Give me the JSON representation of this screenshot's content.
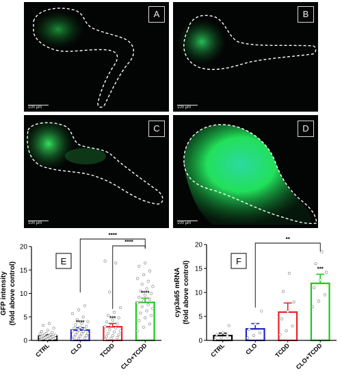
{
  "images": [
    {
      "letter": "A",
      "scale_label": "100 µm"
    },
    {
      "letter": "B",
      "scale_label": "100 µm"
    },
    {
      "letter": "C",
      "scale_label": "100 µm"
    },
    {
      "letter": "D",
      "scale_label": "100 µm"
    }
  ],
  "colors": {
    "panel_bg": "#030504",
    "outline": "#ffffff",
    "gfp": "#27e85a",
    "CTRL": "#000000",
    "CLO": "#1f24c8",
    "TCDD": "#ee1c24",
    "CLO+TCDD": "#19c919"
  },
  "chart_data": [
    {
      "panel_letter": "E",
      "type": "bar",
      "categories": [
        "CTRL",
        "CLO",
        "TCDD",
        "CLO+TCDD"
      ],
      "values": [
        0.9,
        2.2,
        2.9,
        8.1
      ],
      "errors": [
        0.3,
        0.5,
        0.7,
        0.9
      ],
      "significance": [
        "",
        "****",
        "***",
        "****"
      ],
      "brackets": [
        {
          "from": "CLO",
          "to": "CLO+TCDD",
          "label": "****"
        },
        {
          "from": "TCDD",
          "to": "CLO+TCDD",
          "label": "****"
        }
      ],
      "ylabel": "GFP intensity",
      "ylabel2": "(fold above control)",
      "ylim": [
        0,
        20
      ],
      "yticks": [
        0,
        5,
        10,
        15,
        20
      ],
      "points": [
        [
          0.1,
          0.2,
          0.2,
          0.3,
          0.3,
          0.4,
          0.4,
          0.5,
          0.5,
          0.6,
          0.6,
          0.7,
          0.7,
          0.8,
          0.8,
          0.9,
          0.9,
          1.0,
          1.0,
          1.1,
          1.2,
          1.3,
          1.4,
          1.5,
          1.7,
          1.9,
          2.2,
          2.6,
          3.2,
          3.6
        ],
        [
          0.2,
          0.4,
          0.5,
          0.7,
          0.9,
          1.0,
          1.2,
          1.4,
          1.5,
          1.7,
          1.9,
          2.0,
          2.2,
          2.4,
          2.6,
          2.8,
          3.0,
          3.3,
          3.6,
          4.0,
          4.4,
          5.0,
          5.7,
          6.5,
          7.4
        ],
        [
          0.2,
          0.4,
          0.6,
          0.8,
          1.0,
          1.2,
          1.5,
          1.8,
          2.0,
          2.3,
          2.6,
          2.9,
          3.2,
          3.5,
          3.9,
          4.3,
          4.8,
          5.3,
          6.0,
          7.0,
          10.3,
          16.5,
          16.9
        ],
        [
          2.0,
          2.8,
          3.5,
          4.2,
          4.8,
          5.3,
          5.8,
          6.3,
          6.8,
          7.2,
          7.6,
          8.0,
          8.4,
          8.8,
          9.2,
          9.6,
          10.0,
          10.5,
          11.0,
          11.5,
          12.0,
          12.6,
          13.2,
          14.0,
          14.8,
          15.8,
          16.5
        ]
      ]
    },
    {
      "panel_letter": "F",
      "type": "bar",
      "categories": [
        "CTRL",
        "CLO",
        "TCDD",
        "CLO+TCDD"
      ],
      "values": [
        1.0,
        2.4,
        5.9,
        11.9
      ],
      "errors": [
        0.5,
        1.1,
        1.9,
        1.9
      ],
      "significance": [
        "",
        "",
        "",
        "***"
      ],
      "brackets": [
        {
          "from": "CLO",
          "to": "CLO+TCDD",
          "label": "**"
        }
      ],
      "ylabel": "cyp3a65 mRNA",
      "ylabel2": "(fold above control)",
      "ylim": [
        0,
        20
      ],
      "yticks": [
        0,
        5,
        10,
        15,
        20
      ],
      "points": [
        [
          0.2,
          0.6,
          0.9,
          1.2,
          1.6,
          3.1
        ],
        [
          0.5,
          1.0,
          1.6,
          2.3,
          3.4,
          6.1
        ],
        [
          1.2,
          2.0,
          3.0,
          4.5,
          6.0,
          8.0,
          10.2,
          14.0
        ],
        [
          7.0,
          8.2,
          9.5,
          11.0,
          12.6,
          14.2,
          16.0,
          18.5
        ]
      ]
    }
  ]
}
